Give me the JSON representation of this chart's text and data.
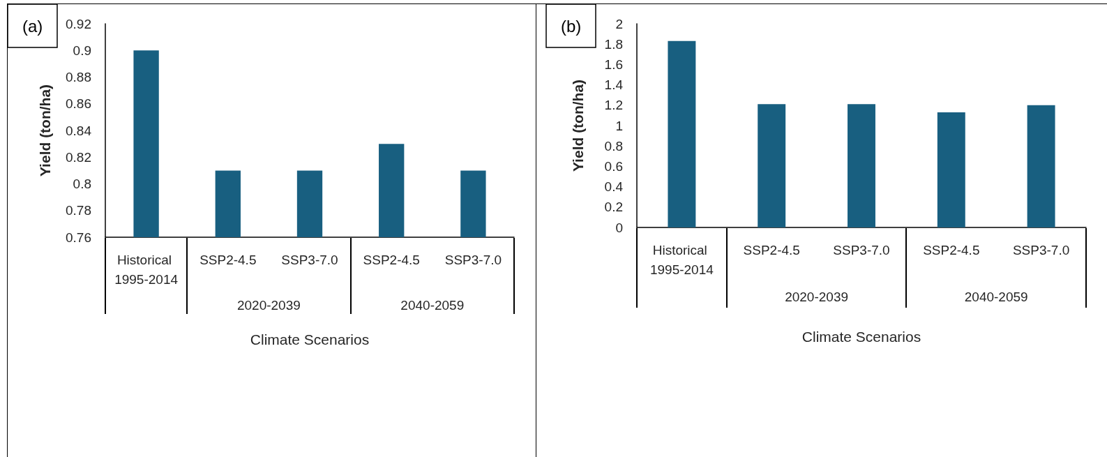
{
  "chart_data": [
    {
      "type": "bar",
      "title": "(a)",
      "ylabel": "Yield (ton/ha)",
      "xlabel": "Climate Scenarios",
      "categories": [
        "Historical 1995-2014",
        "SSP2-4.5",
        "SSP3-7.0",
        "SSP2-4.5",
        "SSP3-7.0"
      ],
      "values": [
        0.9,
        0.81,
        0.81,
        0.83,
        0.81
      ],
      "color": "#185f80",
      "ylim": [
        0.76,
        0.92
      ],
      "yticks": [
        0.76,
        0.78,
        0.8,
        0.82,
        0.84,
        0.86,
        0.88,
        0.9,
        0.92
      ],
      "grid": false,
      "annotations": [
        "2020-2039",
        "2040-2059"
      ]
    },
    {
      "type": "bar",
      "title": "(b)",
      "ylabel": "Yield (ton/ha)",
      "xlabel": "Climate Scenarios",
      "categories": [
        "Historical 1995-2014",
        "SSP2-4.5",
        "SSP3-7.0",
        "SSP2-4.5",
        "SSP3-7.0"
      ],
      "values": [
        1.83,
        1.21,
        1.21,
        1.13,
        1.2
      ],
      "color": "#185f80",
      "ylim": [
        0,
        2
      ],
      "yticks": [
        0,
        0.2,
        0.4,
        0.6,
        0.8,
        1,
        1.2,
        1.4,
        1.6,
        1.8,
        2
      ],
      "grid": false,
      "annotations": [
        "2020-2039",
        "2040-2059"
      ]
    }
  ]
}
